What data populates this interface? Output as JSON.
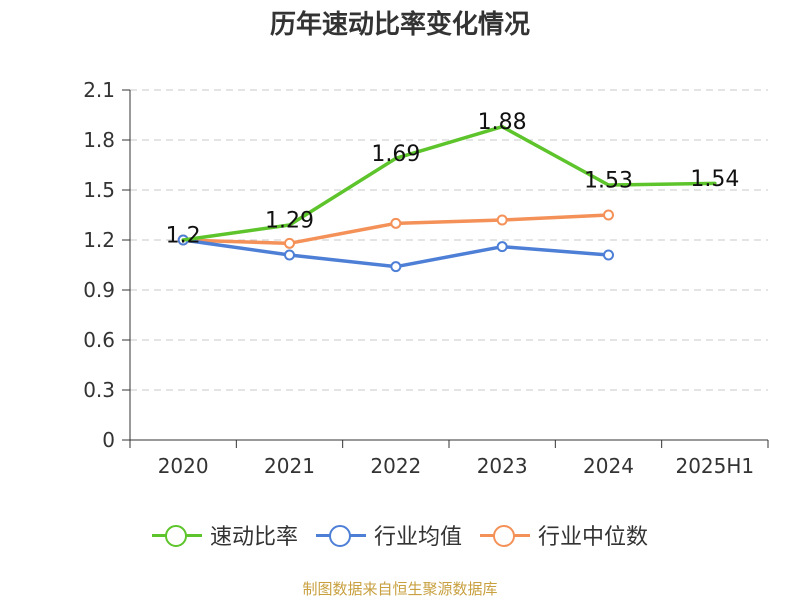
{
  "chart_data": {
    "type": "line",
    "title": "历年速动比率变化情况",
    "categories": [
      "2020",
      "2021",
      "2022",
      "2023",
      "2024",
      "2025H1"
    ],
    "y_ticks": [
      "0",
      "0.3",
      "0.6",
      "0.9",
      "1.2",
      "1.5",
      "1.8",
      "2.1"
    ],
    "ylim": [
      0,
      2.1
    ],
    "xlabel": "",
    "ylabel": "",
    "grid": true,
    "legend_position": "bottom",
    "series": [
      {
        "name": "速动比率",
        "color": "#5dc42b",
        "values": [
          1.2,
          1.29,
          1.69,
          1.88,
          1.53,
          1.54
        ],
        "labels": [
          "1.2",
          "1.29",
          "1.69",
          "1.88",
          "1.53",
          "1.54"
        ],
        "show_markers": false
      },
      {
        "name": "行业均值",
        "color": "#4e7fd6",
        "values": [
          1.2,
          1.11,
          1.04,
          1.16,
          1.11,
          null
        ],
        "show_markers": true
      },
      {
        "name": "行业中位数",
        "color": "#f49158",
        "values": [
          1.2,
          1.18,
          1.3,
          1.32,
          1.35,
          null
        ],
        "show_markers": true
      }
    ]
  },
  "source_note": "制图数据来自恒生聚源数据库"
}
